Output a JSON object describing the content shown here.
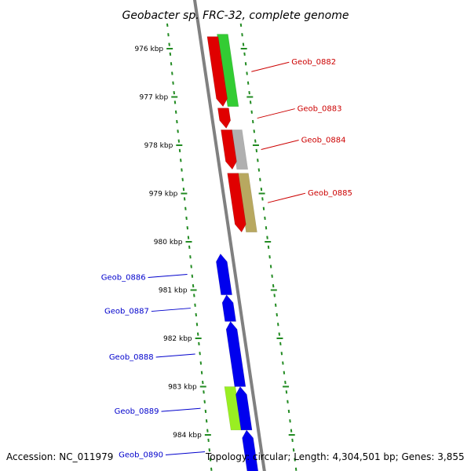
{
  "title": "Geobacter sp. FRC-32, complete genome",
  "footer": {
    "accession": "Accession: NC_011979",
    "summary": "Topology: circular; Length: 4,304,501 bp; Genes: 3,855"
  },
  "colors": {
    "backbone": "#808080",
    "ticks": "#228b22",
    "forward_label": "#cc0000",
    "reverse_label": "#0000cc"
  },
  "chart_data": {
    "type": "genome-map",
    "ticks": [
      {
        "kbp": 976,
        "label": "976 kbp"
      },
      {
        "kbp": 977,
        "label": "977 kbp"
      },
      {
        "kbp": 978,
        "label": "978 kbp"
      },
      {
        "kbp": 979,
        "label": "979 kbp"
      },
      {
        "kbp": 980,
        "label": "980 kbp"
      },
      {
        "kbp": 981,
        "label": "981 kbp"
      },
      {
        "kbp": 982,
        "label": "982 kbp"
      },
      {
        "kbp": 983,
        "label": "983 kbp"
      },
      {
        "kbp": 984,
        "label": "984 kbp"
      }
    ],
    "genes": [
      {
        "name": "Geob_0882",
        "strand": "+",
        "start_kbp": 975.75,
        "end_kbp": 977.2,
        "color": "#e00000",
        "label": "Geob_0882"
      },
      {
        "name": "Geob_0883",
        "strand": "+",
        "start_kbp": 977.23,
        "end_kbp": 977.65,
        "color": "#e00000",
        "label": "Geob_0883"
      },
      {
        "name": "Geob_0884",
        "strand": "+",
        "start_kbp": 977.68,
        "end_kbp": 978.5,
        "color": "#e00000",
        "label": "Geob_0884"
      },
      {
        "name": "Geob_0885",
        "strand": "+",
        "start_kbp": 978.58,
        "end_kbp": 979.8,
        "color": "#e00000",
        "label": "Geob_0885"
      },
      {
        "name": "Geob_0886",
        "strand": "-",
        "start_kbp": 980.25,
        "end_kbp": 981.1,
        "color": "#0000ee",
        "label": "Geob_0886"
      },
      {
        "name": "Geob_0887",
        "strand": "-",
        "start_kbp": 981.1,
        "end_kbp": 981.65,
        "color": "#0000ee",
        "label": "Geob_0887"
      },
      {
        "name": "Geob_0888",
        "strand": "-",
        "start_kbp": 981.65,
        "end_kbp": 983.0,
        "color": "#0000ee",
        "label": "Geob_0888"
      },
      {
        "name": "Geob_0889",
        "strand": "-",
        "start_kbp": 983.0,
        "end_kbp": 983.9,
        "color": "#0000ee",
        "label": "Geob_0889"
      },
      {
        "name": "Geob_0890",
        "strand": "-",
        "start_kbp": 983.9,
        "end_kbp": 984.8,
        "color": "#0000ee",
        "label": "Geob_0890"
      }
    ],
    "features": [
      {
        "kind": "cds",
        "strand": "+",
        "start_kbp": 975.7,
        "end_kbp": 977.2,
        "color": "#33cc33"
      },
      {
        "kind": "cds",
        "strand": "+",
        "start_kbp": 977.68,
        "end_kbp": 978.5,
        "color": "#b0b0b0"
      },
      {
        "kind": "cds",
        "strand": "+",
        "start_kbp": 978.58,
        "end_kbp": 979.8,
        "color": "#b8a860"
      },
      {
        "kind": "cds",
        "strand": "-",
        "start_kbp": 983.0,
        "end_kbp": 983.9,
        "color": "#99ee22"
      }
    ]
  }
}
